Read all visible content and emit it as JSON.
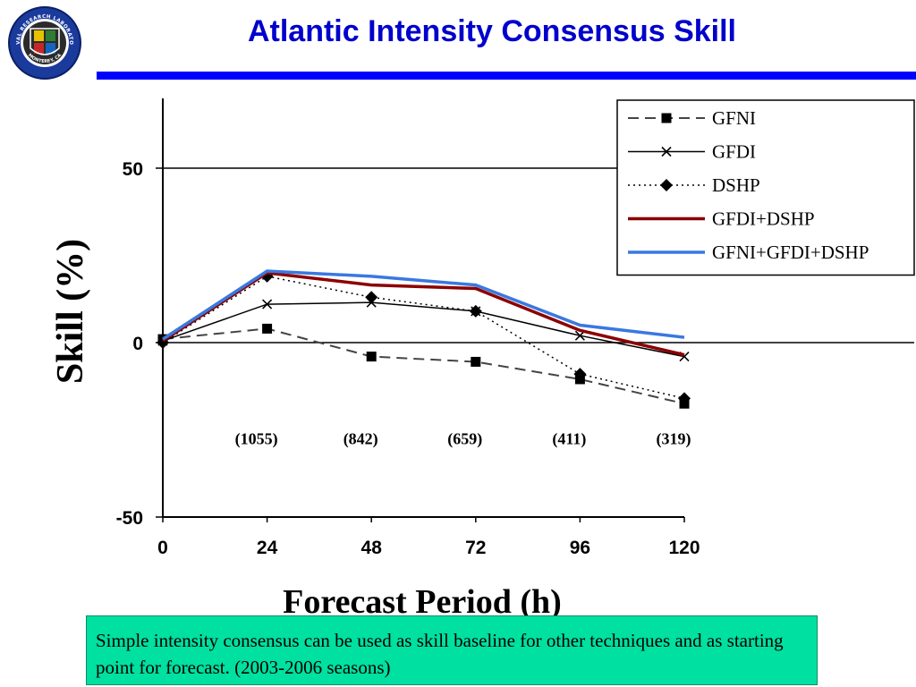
{
  "header": {
    "title": "Atlantic Intensity Consensus Skill",
    "logo": {
      "icon": "naval-research-laboratory-seal",
      "text_top": "NAVAL RESEARCH LABORATORY",
      "text_bottom": "MONTEREY, CA"
    },
    "accent_color": "#0000ff"
  },
  "chart_data": {
    "type": "line",
    "title": "",
    "xlabel": "Forecast Period (h)",
    "ylabel": "Skill (%)",
    "x": [
      0,
      24,
      48,
      72,
      96,
      120
    ],
    "xticks": [
      "0",
      "24",
      "48",
      "72",
      "96",
      "120"
    ],
    "yticks": [
      "50",
      "0",
      "-50"
    ],
    "ylim": [
      -50,
      70
    ],
    "xlim": [
      0,
      120
    ],
    "grid": "horizontal at 0 and 50",
    "legend_position": "top-right",
    "sample_sizes": {
      "x": [
        24,
        48,
        72,
        96,
        120
      ],
      "labels": [
        "(1055)",
        "(842)",
        "(659)",
        "(411)",
        "(319)"
      ]
    },
    "series": [
      {
        "name": "GFNI",
        "values": [
          1,
          4,
          -4,
          -5.5,
          -10.5,
          -17.5
        ],
        "color": "#444444",
        "style": "dashed",
        "marker": "square"
      },
      {
        "name": "GFDI",
        "values": [
          0.5,
          11,
          11.5,
          9,
          2,
          -4
        ],
        "color": "#000000",
        "style": "solid",
        "marker": "x"
      },
      {
        "name": "DSHP",
        "values": [
          0,
          19,
          13,
          9,
          -9,
          -16
        ],
        "color": "#000000",
        "style": "dotted",
        "marker": "diamond"
      },
      {
        "name": "GFDI+DSHP",
        "values": [
          0.5,
          20,
          16.5,
          15.5,
          3.5,
          -3.5
        ],
        "color": "#8b0000",
        "style": "solid-thick",
        "marker": "none"
      },
      {
        "name": "GFNI+GFDI+DSHP",
        "values": [
          1,
          20.5,
          19,
          16.5,
          5,
          1.5
        ],
        "color": "#3a78e0",
        "style": "solid-thick",
        "marker": "none"
      }
    ]
  },
  "note": {
    "text": "Simple intensity consensus can be used as skill baseline for other techniques and as starting point for forecast.  (2003-2006 seasons)",
    "background_color": "#00e0a0"
  }
}
